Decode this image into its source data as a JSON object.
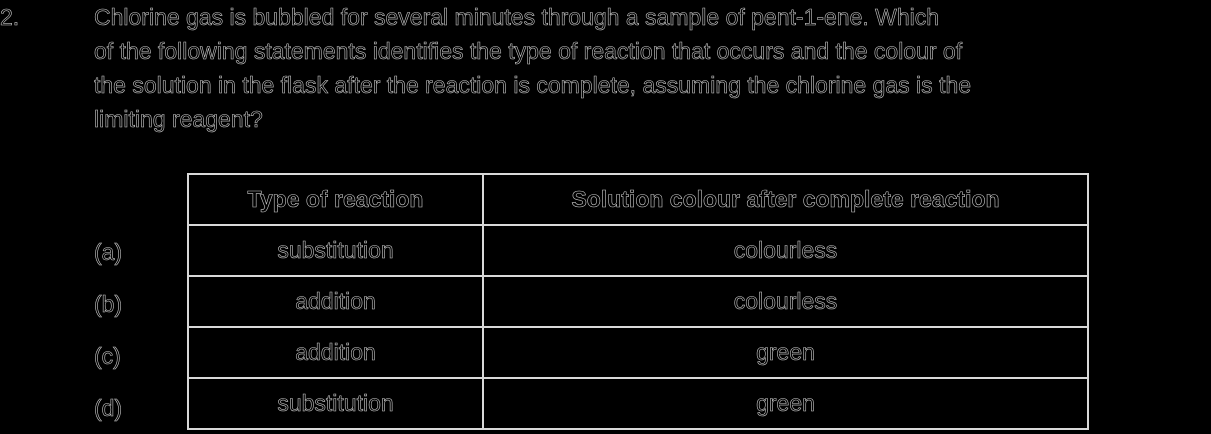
{
  "question": {
    "number": "2.",
    "lines": [
      "Chlorine gas is bubbled for several minutes through a sample of pent-1-ene. Which",
      "of the following statements identifies the type of reaction that occurs and the colour of",
      "the solution in the flask after the reaction is complete, assuming the chlorine gas is the",
      "limiting reagent?"
    ]
  },
  "table": {
    "headers": [
      "Type of reaction",
      "Solution colour after complete reaction"
    ],
    "rows": [
      {
        "option": "(a)",
        "type": "substitution",
        "colour": "colourless"
      },
      {
        "option": "(b)",
        "type": "addition",
        "colour": "colourless"
      },
      {
        "option": "(c)",
        "type": "addition",
        "colour": "green"
      },
      {
        "option": "(d)",
        "type": "substitution",
        "colour": "green"
      }
    ]
  }
}
